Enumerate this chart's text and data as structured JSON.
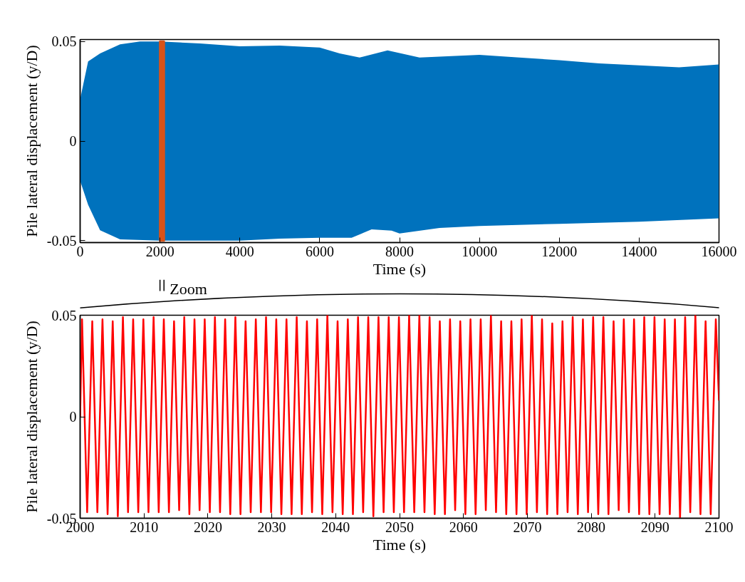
{
  "chart_data": [
    {
      "type": "area",
      "xlabel": "Time (s)",
      "ylabel": "Pile lateral displacement (y/D)",
      "xlim": [
        0,
        16000
      ],
      "ylim": [
        -0.051,
        0.051
      ],
      "xticks": [
        0,
        2000,
        4000,
        6000,
        8000,
        10000,
        12000,
        14000,
        16000
      ],
      "yticks": [
        -0.05,
        0,
        0.05
      ],
      "series": [
        {
          "color": "#0072bd",
          "x": [
            0,
            200,
            500,
            1000,
            1500,
            2000,
            3000,
            4000,
            5000,
            6000,
            6500,
            7000,
            7700,
            8500,
            10000,
            11000,
            12000,
            13000,
            14000,
            15000,
            16000
          ],
          "values": [
            0.021,
            0.04,
            0.044,
            0.0486,
            0.05,
            0.05,
            0.049,
            0.0476,
            0.048,
            0.047,
            0.044,
            0.042,
            0.0455,
            0.042,
            0.0433,
            0.042,
            0.0406,
            0.039,
            0.038,
            0.037,
            0.0385
          ]
        },
        {
          "color": "#0072bd",
          "x": [
            0,
            200,
            500,
            1000,
            2000,
            3000,
            4000,
            5000,
            6000,
            6800,
            7300,
            7800,
            8000,
            9000,
            10000,
            12000,
            14000,
            16000
          ],
          "values": [
            -0.02,
            -0.032,
            -0.0448,
            -0.0494,
            -0.05,
            -0.05,
            -0.05,
            -0.049,
            -0.0486,
            -0.0486,
            -0.0444,
            -0.045,
            -0.0464,
            -0.0437,
            -0.0427,
            -0.0416,
            -0.0405,
            -0.0388
          ]
        }
      ],
      "bands": [
        {
          "axis": "x",
          "from": 2000,
          "to": 2100,
          "color": "#d95319"
        }
      ],
      "annotations": [
        "Zoom"
      ]
    },
    {
      "type": "line",
      "xlabel": "Time (s)",
      "ylabel": "Pile lateral displacement (y/D)",
      "xlim": [
        2000,
        2100
      ],
      "ylim": [
        -0.05,
        0.05
      ],
      "xticks": [
        2000,
        2010,
        2020,
        2030,
        2040,
        2050,
        2060,
        2070,
        2080,
        2090,
        2100
      ],
      "yticks": [
        -0.05,
        0,
        0.05
      ],
      "series": [
        {
          "color": "#ff0000",
          "x": [
            2000,
            2000.3,
            2001.1,
            2001.9,
            2002.7,
            2003.5,
            2004.3,
            2005.1,
            2005.9,
            2006.7,
            2007.5,
            2008.3,
            2009.1,
            2009.9,
            2010.7,
            2011.5,
            2012.3,
            2013.1,
            2013.9,
            2014.7,
            2015.5,
            2016.3,
            2017.1,
            2017.9,
            2018.7,
            2019.5,
            2020.3,
            2021.1,
            2021.9,
            2022.7,
            2023.5,
            2024.3,
            2025.1,
            2025.9,
            2026.7,
            2027.5,
            2028.3,
            2029.1,
            2029.9,
            2030.7,
            2031.5,
            2032.3,
            2033.1,
            2033.9,
            2034.7,
            2035.5,
            2036.3,
            2037.1,
            2037.9,
            2038.7,
            2039.5,
            2040.3,
            2041.1,
            2041.9,
            2042.7,
            2043.5,
            2044.3,
            2045.1,
            2045.9,
            2046.7,
            2047.5,
            2048.3,
            2049.1,
            2049.9,
            2050.7,
            2051.5,
            2052.3,
            2053.1,
            2053.9,
            2054.7,
            2055.5,
            2056.3,
            2057.1,
            2057.9,
            2058.7,
            2059.5,
            2060.3,
            2061.1,
            2061.9,
            2062.7,
            2063.5,
            2064.3,
            2065.1,
            2065.9,
            2066.7,
            2067.5,
            2068.3,
            2069.1,
            2069.9,
            2070.7,
            2071.5,
            2072.3,
            2073.1,
            2073.9,
            2074.7,
            2075.5,
            2076.3,
            2077.1,
            2077.9,
            2078.7,
            2079.5,
            2080.3,
            2081.1,
            2081.9,
            2082.7,
            2083.5,
            2084.3,
            2085.1,
            2085.9,
            2086.7,
            2087.5,
            2088.3,
            2089.1,
            2089.9,
            2090.7,
            2091.5,
            2092.3,
            2093.1,
            2093.9,
            2094.7,
            2095.5,
            2096.3,
            2097.1,
            2097.9,
            2098.7,
            2099.5,
            2100
          ],
          "values": [
            0,
            0.048,
            -0.047,
            0.047,
            -0.047,
            0.048,
            -0.048,
            0.047,
            -0.049,
            0.049,
            -0.047,
            0.048,
            -0.047,
            0.048,
            -0.047,
            0.049,
            -0.047,
            0.048,
            -0.047,
            0.047,
            -0.046,
            0.049,
            -0.048,
            0.048,
            -0.046,
            0.048,
            -0.047,
            0.049,
            -0.047,
            0.048,
            -0.048,
            0.049,
            -0.048,
            0.047,
            -0.047,
            0.048,
            -0.047,
            0.049,
            -0.047,
            0.048,
            -0.048,
            0.048,
            -0.048,
            0.049,
            -0.048,
            0.047,
            -0.047,
            0.048,
            -0.048,
            0.05,
            -0.047,
            0.047,
            -0.048,
            0.048,
            -0.048,
            0.049,
            -0.047,
            0.049,
            -0.049,
            0.049,
            -0.047,
            0.049,
            -0.047,
            0.049,
            -0.047,
            0.05,
            -0.047,
            0.05,
            -0.047,
            0.049,
            -0.048,
            0.047,
            -0.048,
            0.048,
            -0.046,
            0.047,
            -0.048,
            0.048,
            -0.048,
            0.048,
            -0.046,
            0.05,
            -0.047,
            0.047,
            -0.048,
            0.047,
            -0.048,
            0.048,
            -0.048,
            0.05,
            -0.047,
            0.048,
            -0.048,
            0.046,
            -0.048,
            0.047,
            -0.047,
            0.049,
            -0.048,
            0.048,
            -0.047,
            0.049,
            -0.048,
            0.049,
            -0.048,
            0.047,
            -0.046,
            0.048,
            -0.047,
            0.048,
            -0.048,
            0.049,
            -0.048,
            0.049,
            -0.048,
            0.048,
            -0.048,
            0.048,
            -0.05,
            0.049,
            -0.047,
            0.05,
            -0.048,
            0.047,
            -0.048,
            0.048,
            0.008
          ]
        }
      ]
    }
  ]
}
